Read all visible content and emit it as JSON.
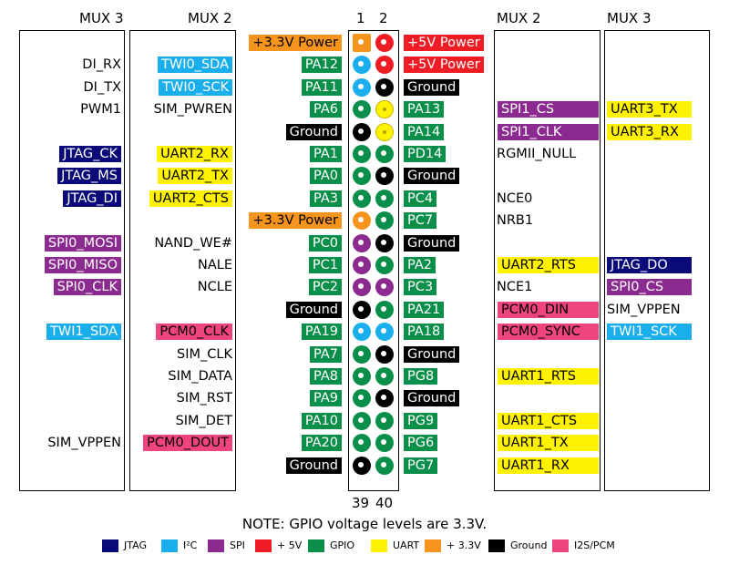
{
  "headers": {
    "left_mux3": "MUX 3",
    "left_mux2": "MUX 2",
    "pin1": "1",
    "pin2": "2",
    "right_mux2": "MUX 2",
    "right_mux3": "MUX 3",
    "pin39": "39",
    "pin40": "40"
  },
  "note": "NOTE: GPIO voltage levels are 3.3V.",
  "colors": {
    "JTAG": "#0a0a78",
    "I2C": "#1aaeec",
    "SPI": "#8b2a8f",
    "5V": "#ee1c24",
    "GPIO": "#0a8f4a",
    "UART": "#fff200",
    "3V3": "#f7941d",
    "Ground": "#000000",
    "PCM": "#f0447f",
    "none": "transparent"
  },
  "rows": [
    {
      "lm3": "",
      "lm3c": "none",
      "lm2": "",
      "lm2c": "none",
      "odd": "+3.3V Power",
      "oddc": "3V3",
      "p1": "3V3",
      "p2": "5V",
      "even": "+5V Power",
      "evenc": "5V",
      "rm2": "",
      "rm2c": "none",
      "rm3": "",
      "rm3c": "none"
    },
    {
      "lm3": "DI_RX",
      "lm3c": "none",
      "lm2": "TWI0_SDA",
      "lm2c": "I2C",
      "odd": "PA12",
      "oddc": "GPIO",
      "p1": "I2C",
      "p2": "5V",
      "even": "+5V Power",
      "evenc": "5V",
      "rm2": "",
      "rm2c": "none",
      "rm3": "",
      "rm3c": "none"
    },
    {
      "lm3": "DI_TX",
      "lm3c": "none",
      "lm2": "TWI0_SCK",
      "lm2c": "I2C",
      "odd": "PA11",
      "oddc": "GPIO",
      "p1": "I2C",
      "p2": "Ground",
      "even": "Ground",
      "evenc": "Ground",
      "rm2": "",
      "rm2c": "none",
      "rm3": "",
      "rm3c": "none"
    },
    {
      "lm3": "PWM1",
      "lm3c": "none",
      "lm2": "SIM_PWREN",
      "lm2c": "none",
      "odd": "PA6",
      "oddc": "GPIO",
      "p1": "GPIO",
      "p2": "UART",
      "even": "PA13",
      "evenc": "GPIO",
      "rm2": "SPI1_CS",
      "rm2c": "SPI",
      "rm3": "UART3_TX",
      "rm3c": "UART"
    },
    {
      "lm3": "",
      "lm3c": "none",
      "lm2": "",
      "lm2c": "none",
      "odd": "Ground",
      "oddc": "Ground",
      "p1": "Ground",
      "p2": "UART",
      "even": "PA14",
      "evenc": "GPIO",
      "rm2": "SPI1_CLK",
      "rm2c": "SPI",
      "rm3": "UART3_RX",
      "rm3c": "UART"
    },
    {
      "lm3": "JTAG_CK",
      "lm3c": "JTAG",
      "lm2": "UART2_RX",
      "lm2c": "UART",
      "odd": "PA1",
      "oddc": "GPIO",
      "p1": "GPIO",
      "p2": "GPIO",
      "even": "PD14",
      "evenc": "GPIO",
      "rm2": "RGMII_NULL",
      "rm2c": "none",
      "rm3": "",
      "rm3c": "none"
    },
    {
      "lm3": "JTAG_MS",
      "lm3c": "JTAG",
      "lm2": "UART2_TX",
      "lm2c": "UART",
      "odd": "PA0",
      "oddc": "GPIO",
      "p1": "GPIO",
      "p2": "Ground",
      "even": "Ground",
      "evenc": "Ground",
      "rm2": "",
      "rm2c": "none",
      "rm3": "",
      "rm3c": "none"
    },
    {
      "lm3": "JTAG_DI",
      "lm3c": "JTAG",
      "lm2": "UART2_CTS",
      "lm2c": "UART",
      "odd": "PA3",
      "oddc": "GPIO",
      "p1": "GPIO",
      "p2": "GPIO",
      "even": "PC4",
      "evenc": "GPIO",
      "rm2": "NCE0",
      "rm2c": "none",
      "rm3": "",
      "rm3c": "none"
    },
    {
      "lm3": "",
      "lm3c": "none",
      "lm2": "",
      "lm2c": "none",
      "odd": "+3.3V Power",
      "oddc": "3V3",
      "p1": "3V3",
      "p2": "GPIO",
      "even": "PC7",
      "evenc": "GPIO",
      "rm2": "NRB1",
      "rm2c": "none",
      "rm3": "",
      "rm3c": "none"
    },
    {
      "lm3": "SPI0_MOSI",
      "lm3c": "SPI",
      "lm2": "NAND_WE#",
      "lm2c": "none",
      "odd": "PC0",
      "oddc": "GPIO",
      "p1": "SPI",
      "p2": "Ground",
      "even": "Ground",
      "evenc": "Ground",
      "rm2": "",
      "rm2c": "none",
      "rm3": "",
      "rm3c": "none"
    },
    {
      "lm3": "SPI0_MISO",
      "lm3c": "SPI",
      "lm2": "NALE",
      "lm2c": "none",
      "odd": "PC1",
      "oddc": "GPIO",
      "p1": "SPI",
      "p2": "GPIO",
      "even": "PA2",
      "evenc": "GPIO",
      "rm2": "UART2_RTS",
      "rm2c": "UART",
      "rm3": "JTAG_DO",
      "rm3c": "JTAG"
    },
    {
      "lm3": "SPI0_CLK",
      "lm3c": "SPI",
      "lm2": "NCLE",
      "lm2c": "none",
      "odd": "PC2",
      "oddc": "GPIO",
      "p1": "SPI",
      "p2": "SPI",
      "even": "PC3",
      "evenc": "GPIO",
      "rm2": "NCE1",
      "rm2c": "none",
      "rm3": "SPI0_CS",
      "rm3c": "SPI"
    },
    {
      "lm3": "",
      "lm3c": "none",
      "lm2": "",
      "lm2c": "none",
      "odd": "Ground",
      "oddc": "Ground",
      "p1": "Ground",
      "p2": "GPIO",
      "even": "PA21",
      "evenc": "GPIO",
      "rm2": "PCM0_DIN",
      "rm2c": "PCM",
      "rm3": "SIM_VPPEN",
      "rm3c": "none"
    },
    {
      "lm3": "TWI1_SDA",
      "lm3c": "I2C",
      "lm2": "PCM0_CLK",
      "lm2c": "PCM",
      "odd": "PA19",
      "oddc": "GPIO",
      "p1": "I2C",
      "p2": "I2C",
      "even": "PA18",
      "evenc": "GPIO",
      "rm2": "PCM0_SYNC",
      "rm2c": "PCM",
      "rm3": "TWI1_SCK",
      "rm3c": "I2C"
    },
    {
      "lm3": "",
      "lm3c": "none",
      "lm2": "SIM_CLK",
      "lm2c": "none",
      "odd": "PA7",
      "oddc": "GPIO",
      "p1": "GPIO",
      "p2": "Ground",
      "even": "Ground",
      "evenc": "Ground",
      "rm2": "",
      "rm2c": "none",
      "rm3": "",
      "rm3c": "none"
    },
    {
      "lm3": "",
      "lm3c": "none",
      "lm2": "SIM_DATA",
      "lm2c": "none",
      "odd": "PA8",
      "oddc": "GPIO",
      "p1": "GPIO",
      "p2": "GPIO",
      "even": "PG8",
      "evenc": "GPIO",
      "rm2": "UART1_RTS",
      "rm2c": "UART",
      "rm3": "",
      "rm3c": "none"
    },
    {
      "lm3": "",
      "lm3c": "none",
      "lm2": "SIM_RST",
      "lm2c": "none",
      "odd": "PA9",
      "oddc": "GPIO",
      "p1": "GPIO",
      "p2": "Ground",
      "even": "Ground",
      "evenc": "Ground",
      "rm2": "",
      "rm2c": "none",
      "rm3": "",
      "rm3c": "none"
    },
    {
      "lm3": "",
      "lm3c": "none",
      "lm2": "SIM_DET",
      "lm2c": "none",
      "odd": "PA10",
      "oddc": "GPIO",
      "p1": "GPIO",
      "p2": "GPIO",
      "even": "PG9",
      "evenc": "GPIO",
      "rm2": "UART1_CTS",
      "rm2c": "UART",
      "rm3": "",
      "rm3c": "none"
    },
    {
      "lm3": "SIM_VPPEN",
      "lm3c": "none",
      "lm2": "PCM0_DOUT",
      "lm2c": "PCM",
      "odd": "PA20",
      "oddc": "GPIO",
      "p1": "GPIO",
      "p2": "GPIO",
      "even": "PG6",
      "evenc": "GPIO",
      "rm2": "UART1_TX",
      "rm2c": "UART",
      "rm3": "",
      "rm3c": "none"
    },
    {
      "lm3": "",
      "lm3c": "none",
      "lm2": "",
      "lm2c": "none",
      "odd": "Ground",
      "oddc": "Ground",
      "p1": "Ground",
      "p2": "GPIO",
      "even": "PG7",
      "evenc": "GPIO",
      "rm2": "UART1_RX",
      "rm2c": "UART",
      "rm3": "",
      "rm3c": "none"
    }
  ],
  "legend": [
    {
      "label": "JTAG",
      "color": "JTAG"
    },
    {
      "label": "I²C",
      "color": "I2C"
    },
    {
      "label": "SPI",
      "color": "SPI"
    },
    {
      "label": "+ 5V",
      "color": "5V"
    },
    {
      "label": "GPIO",
      "color": "GPIO"
    },
    {
      "label": "UART",
      "color": "UART"
    },
    {
      "label": "+ 3.3V",
      "color": "3V3"
    },
    {
      "label": "Ground",
      "color": "Ground"
    },
    {
      "label": "I2S/PCM",
      "color": "PCM"
    }
  ]
}
